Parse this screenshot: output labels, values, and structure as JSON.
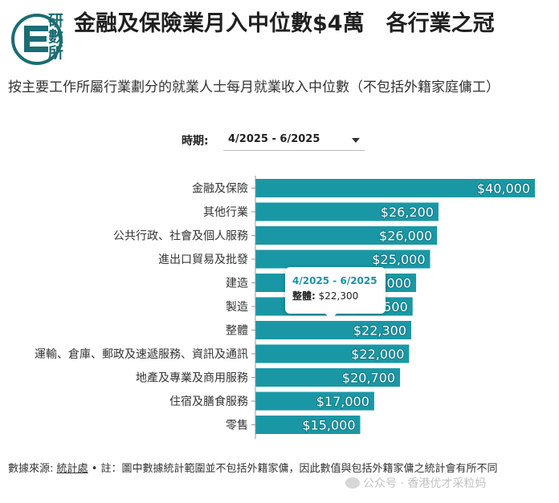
{
  "logo": {
    "text": "研數所"
  },
  "header": {
    "title": "金融及保險業月入中位數$4萬　各行業之冠",
    "subtitle": "按主要工作所屬行業劃分的就業人士每月就業收入中位數（不包括外籍家庭傭工）"
  },
  "filter": {
    "label": "時期:",
    "value": "4/2025 - 6/2025"
  },
  "tooltip": {
    "period": "4/2025 - 6/2025",
    "key": "整體:",
    "value": "$22,300"
  },
  "footer": {
    "source_label": "數據來源:",
    "source_link": "統計處",
    "note": "• 註：圖中數據統計範圍並不包括外籍家傭，因此數值與包括外籍家傭之統計會有所不同"
  },
  "watermark": {
    "text": "公众号 · 香港优才采粒妈"
  },
  "colors": {
    "bar": "#1a97a5",
    "axis": "#999999"
  },
  "chart_data": {
    "type": "bar",
    "orientation": "horizontal",
    "categories": [
      "金融及保險",
      "其他行業",
      "公共行政、社會及個人服務",
      "進出口貿易及批發",
      "建造",
      "製造",
      "整體",
      "運輸、倉庫、郵政及速遞服務、資訊及通訊",
      "地產及專業及商用服務",
      "住宿及膳食服務",
      "零售"
    ],
    "values": [
      40000,
      26200,
      26000,
      25000,
      23000,
      22500,
      22300,
      22000,
      20700,
      17000,
      15000
    ],
    "labels": [
      "$40,000",
      "$26,200",
      "$26,000",
      "$25,000",
      "$23,000",
      "$22,500",
      "$22,300",
      "$22,000",
      "$20,700",
      "$17,000",
      "$15,000"
    ],
    "xlim": [
      0,
      40000
    ],
    "grid": false,
    "legend": "none"
  }
}
